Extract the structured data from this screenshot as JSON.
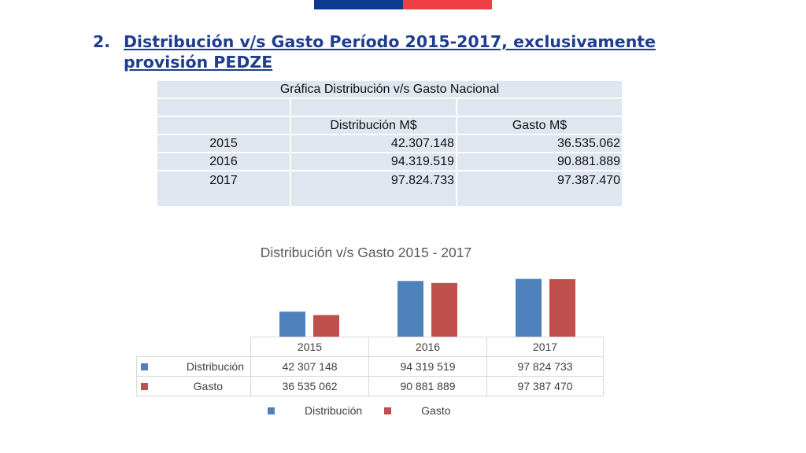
{
  "heading": {
    "number": "2.",
    "text": "Distribución v/s Gasto Período 2015-2017, exclusivamente provisión PEDZE"
  },
  "table": {
    "title": "Gráfica Distribución v/s Gasto Nacional",
    "col_dist": "Distribución M$",
    "col_gasto": "Gasto M$",
    "rows": [
      {
        "year": "2015",
        "dist": "42.307.148",
        "gasto": "36.535.062"
      },
      {
        "year": "2016",
        "dist": "94.319.519",
        "gasto": "90.881.889"
      },
      {
        "year": "2017",
        "dist": "97.824.733",
        "gasto": "97.387.470"
      }
    ]
  },
  "chart_data": {
    "type": "bar",
    "title": "Distribución v/s Gasto 2015 - 2017",
    "categories": [
      "2015",
      "2016",
      "2017"
    ],
    "series": [
      {
        "name": "Distribución",
        "values": [
          42307148,
          94319519,
          97824733
        ],
        "labels": [
          "42 307 148",
          "94 319 519",
          "97 824 733"
        ],
        "color": "#4f81bd"
      },
      {
        "name": "Gasto",
        "values": [
          36535062,
          90881889,
          97387470
        ],
        "labels": [
          "36 535 062",
          "90 881 889",
          "97 387 470"
        ],
        "color": "#c0504d"
      }
    ],
    "ylim": [
      0,
      100000000
    ],
    "grid": false,
    "legend_position": "bottom",
    "data_table": true
  }
}
